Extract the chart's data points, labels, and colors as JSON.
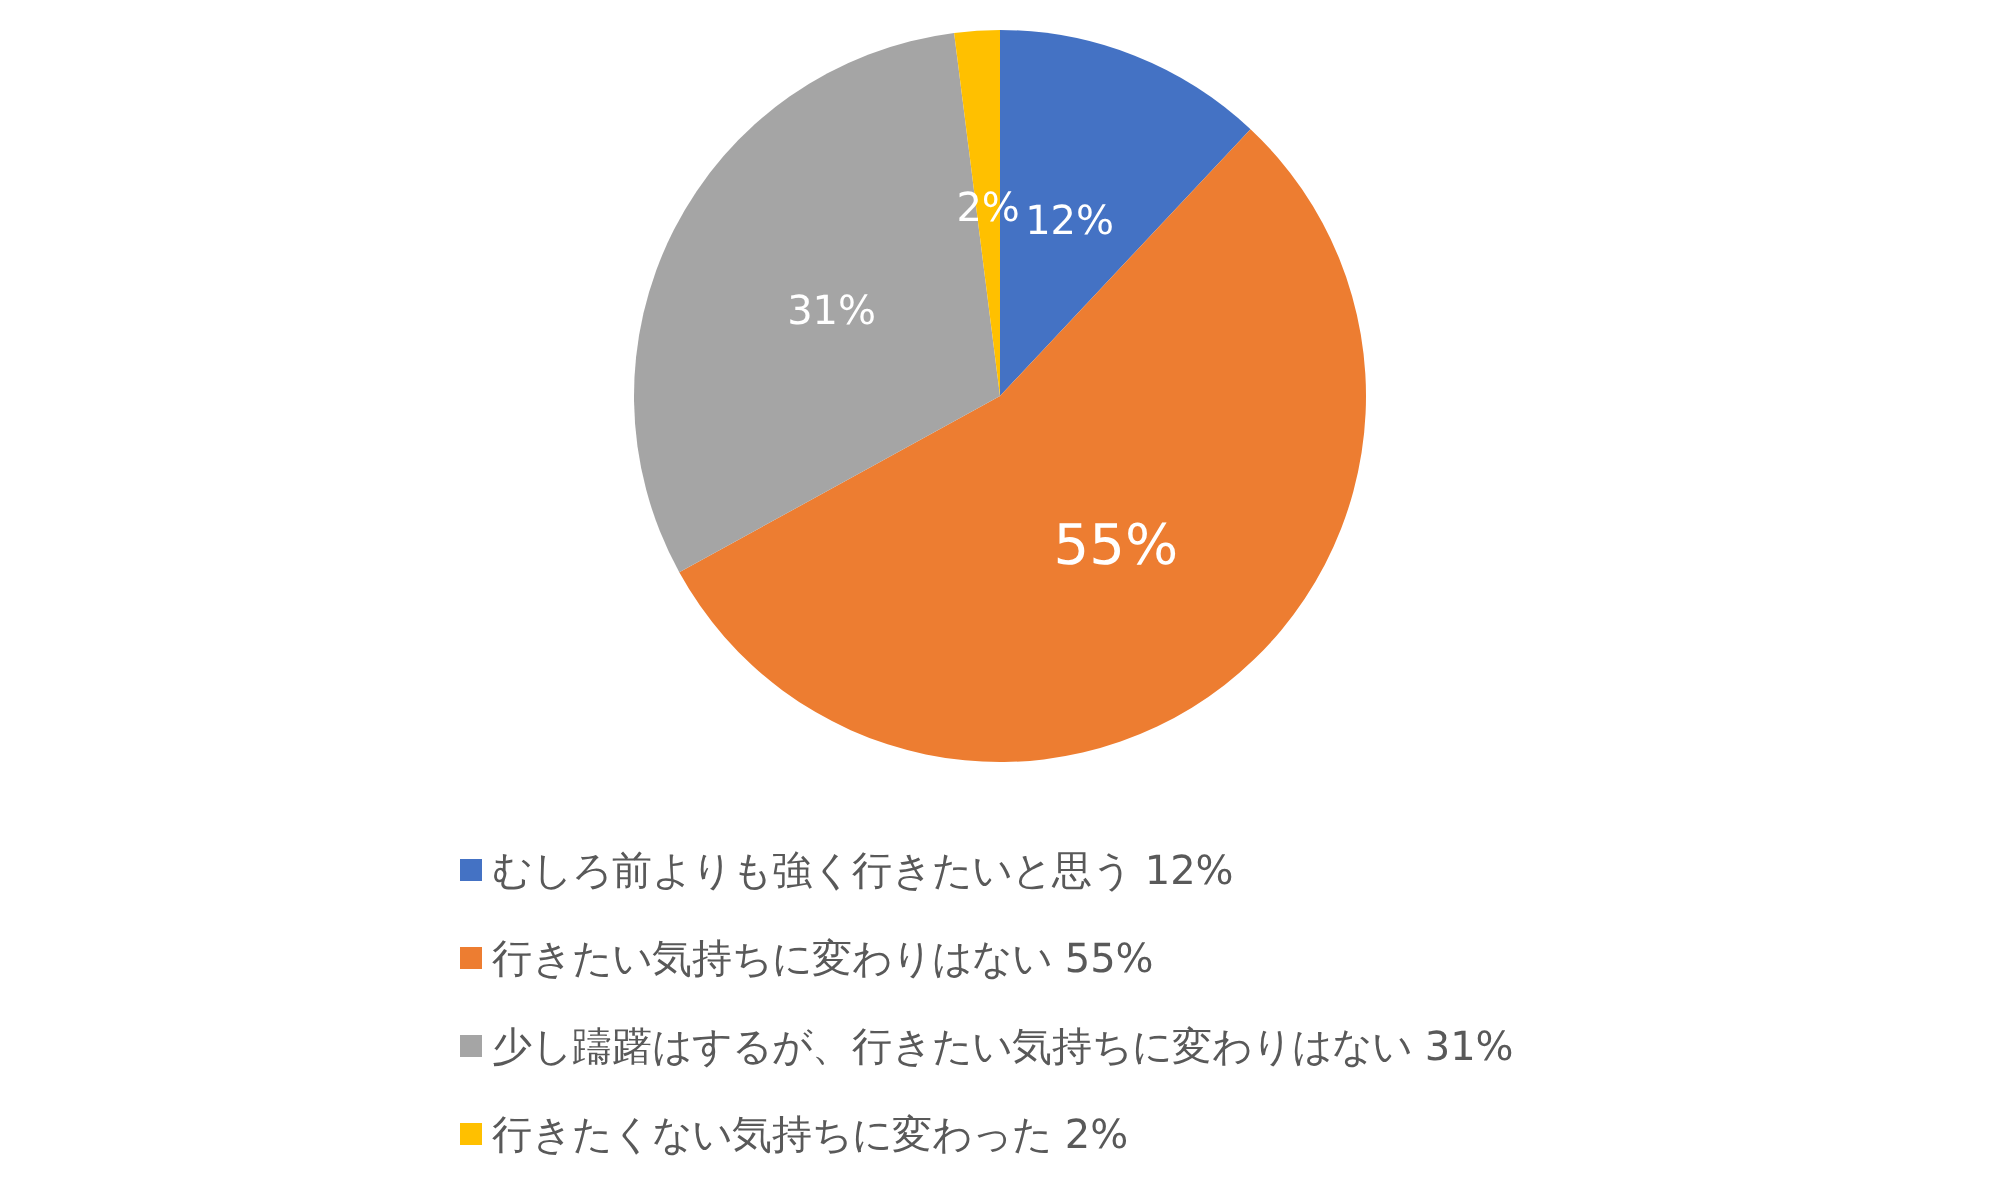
{
  "chart_data": {
    "type": "pie",
    "categories": [
      "むしろ前よりも強く行きたいと思う 12%",
      "行きたい気持ちに変わりはない 55%",
      "少し躊躇はするが、行きたい気持ちに変わりはない 31%",
      "行きたくない気持ちに変わった 2%"
    ],
    "values": [
      12,
      55,
      31,
      2
    ],
    "colors": [
      "#4472c4",
      "#ed7d31",
      "#a5a5a5",
      "#ffc000"
    ],
    "value_labels": [
      "12%",
      "55%",
      "31%",
      "2%"
    ],
    "legend": "bottom"
  }
}
